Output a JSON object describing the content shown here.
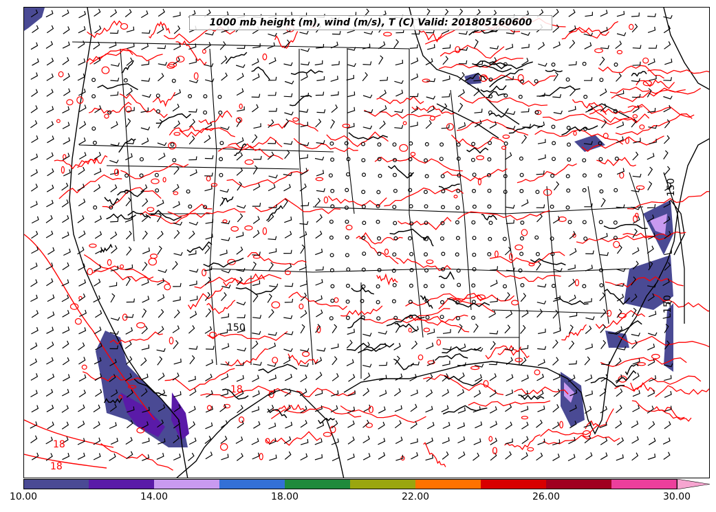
{
  "title": "1000 mb height (m), wind (m/s), T (C) Valid: 201805160600",
  "colorbar": {
    "colors": [
      "#4a4a94",
      "#5a1aa8",
      "#c99af0",
      "#3370d6",
      "#1f8a3b",
      "#9aa60f",
      "#ff7200",
      "#d80000",
      "#a00020",
      "#ec3f9c",
      "#f6a5d0"
    ],
    "tick_labels": [
      "10.00",
      "14.00",
      "18.00",
      "22.00",
      "26.00",
      "30.00"
    ]
  },
  "map_labels": {
    "height_labels": [
      "150",
      "150",
      "150"
    ],
    "temp_labels": [
      "18",
      "18",
      "18",
      "0",
      "0",
      "0"
    ]
  },
  "legend_colors": {
    "temperature_contour": "#ff0000",
    "height_contour": "#000000",
    "wind_barb": "#000000"
  }
}
